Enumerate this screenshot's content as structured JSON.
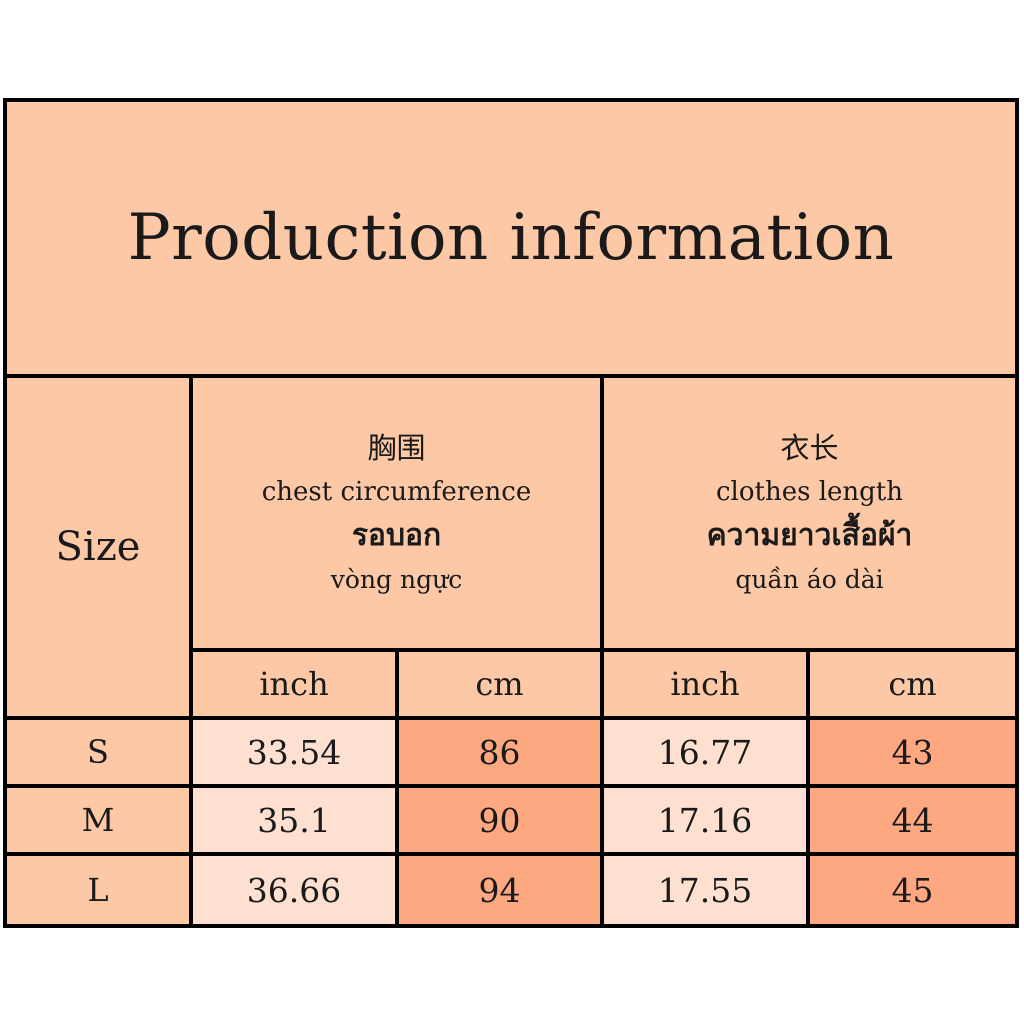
{
  "title": "Production information",
  "size_header": "Size",
  "chest": {
    "zh": "胸围",
    "en": "chest circumference",
    "th": "รอบอก",
    "vi": "vòng ngực"
  },
  "length": {
    "zh": "衣长",
    "en": "clothes length",
    "th": "ความยาวเสื้อผ้า",
    "vi": "quần áo dài"
  },
  "units": [
    "inch",
    "cm",
    "inch",
    "cm"
  ],
  "rows": [
    {
      "size": "S",
      "values": [
        "33.54",
        "86",
        "16.77",
        "43"
      ]
    },
    {
      "size": "M",
      "values": [
        "35.1",
        "90",
        "17.16",
        "44"
      ]
    },
    {
      "size": "L",
      "values": [
        "36.66",
        "94",
        "17.55",
        "45"
      ]
    }
  ],
  "colors": {
    "header_bg": "#fdc8a6",
    "inch_bg": "#fee0d0",
    "cm_bg": "#fda880",
    "border": "#000000"
  }
}
